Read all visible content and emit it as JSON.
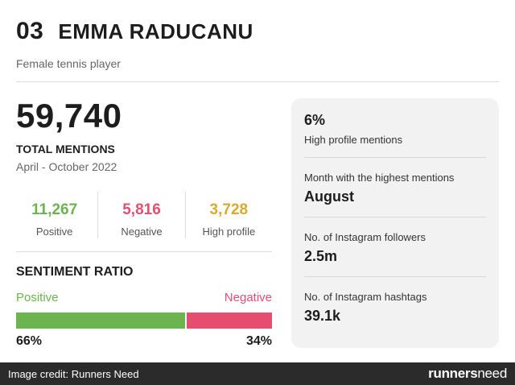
{
  "header": {
    "rank": "03",
    "name": "EMMA RADUCANU",
    "subtitle": "Female tennis player"
  },
  "totals": {
    "count": "59,740",
    "label": "TOTAL MENTIONS",
    "range": "April - October 2022"
  },
  "stats": [
    {
      "value": "11,267",
      "label": "Positive",
      "color": "#6bb44f"
    },
    {
      "value": "5,816",
      "label": "Negative",
      "color": "#e64e70"
    },
    {
      "value": "3,728",
      "label": "High profile",
      "color": "#d9ab2c"
    }
  ],
  "sentiment": {
    "title": "SENTIMENT RATIO",
    "positive_label": "Positive",
    "negative_label": "Negative",
    "positive_pct": "66%",
    "negative_pct": "34%",
    "positive_fraction": 0.66,
    "positive_color": "#6bb44f",
    "negative_color": "#e64e70"
  },
  "panel": [
    {
      "value": "6%",
      "label": "High profile mentions"
    },
    {
      "label": "Month with the highest mentions",
      "value": "August"
    },
    {
      "label": "No. of Instagram followers",
      "value": "2.5m"
    },
    {
      "label": "No. of Instagram hashtags",
      "value": "39.1k"
    }
  ],
  "footer": {
    "credit": "Image credit: Runners Need",
    "logo_main": "runners",
    "logo_accent": "need"
  }
}
